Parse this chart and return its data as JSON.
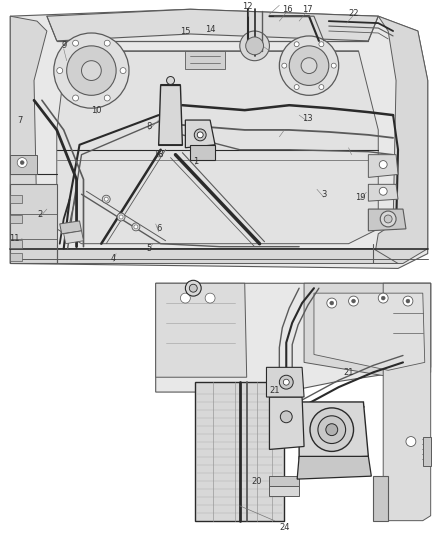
{
  "bg_color": "#ffffff",
  "line_color": "#5a5a5a",
  "dark_line": "#2a2a2a",
  "light_line": "#888888",
  "fill_light": "#e8e8e8",
  "fill_medium": "#d8d8d8",
  "fill_dark": "#c8c8c8",
  "label_color": "#333333",
  "fig_width": 4.38,
  "fig_height": 5.33,
  "dpi": 100
}
